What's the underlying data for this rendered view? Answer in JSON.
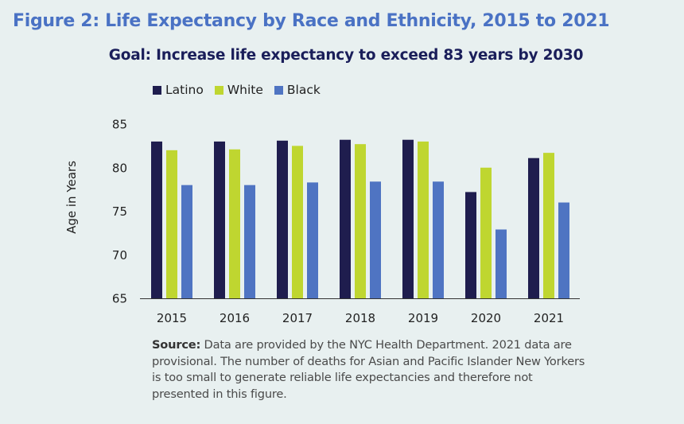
{
  "figure_title": "Figure 2: Life Expectancy by Race and Ethnicity, 2015 to 2021",
  "source": {
    "label": "Source:",
    "text": " Data are provided by the NYC Health Department. 2021 data are provisional. The number of deaths for Asian and Pacific Islander New Yorkers is too small to generate reliable life expectancies and therefore not presented in this figure."
  },
  "chart_data": {
    "type": "bar",
    "title": "Goal: Increase life expectancy to exceed 83 years by 2030",
    "xlabel": "",
    "ylabel": "Age in Years",
    "categories": [
      "2015",
      "2016",
      "2017",
      "2018",
      "2019",
      "2020",
      "2021"
    ],
    "ylim": [
      65,
      85
    ],
    "yticks": [
      65,
      70,
      75,
      80,
      85
    ],
    "grid": false,
    "legend_position": "top-left",
    "series": [
      {
        "name": "Latino",
        "color": "#1f1d4e",
        "values": [
          83.0,
          83.0,
          83.1,
          83.2,
          83.2,
          77.2,
          81.1
        ]
      },
      {
        "name": "White",
        "color": "#bfd630",
        "values": [
          82.0,
          82.1,
          82.5,
          82.7,
          83.0,
          80.0,
          81.7
        ]
      },
      {
        "name": "Black",
        "color": "#4f74c2",
        "values": [
          78.0,
          78.0,
          78.3,
          78.4,
          78.4,
          72.9,
          76.0
        ]
      }
    ]
  }
}
